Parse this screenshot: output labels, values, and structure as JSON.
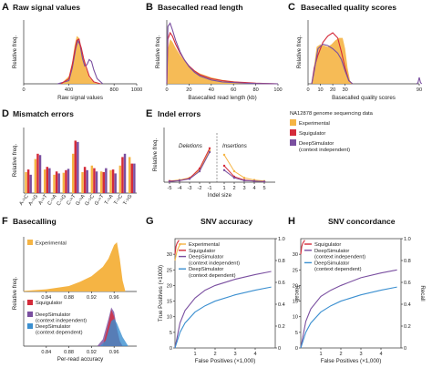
{
  "colors": {
    "experimental": "#f5b444",
    "squigulator": "#d42b3a",
    "deepsim_ci": "#7a4fa0",
    "deepsim_cd": "#3b8fd0",
    "right_axis": "#444444"
  },
  "chart_data": [
    {
      "id": "A",
      "type": "line",
      "letter": "A",
      "title": "Raw signal values",
      "xlabel": "Raw signal values",
      "ylabel": "Relative freq.",
      "xlim": [
        0,
        1000
      ],
      "ylim": [
        0,
        1
      ],
      "xticks": [
        0,
        400,
        800,
        1000
      ],
      "xtick_labels": [
        "0",
        "400",
        "800",
        "1000"
      ],
      "series": [
        {
          "key": "deepsim_ci",
          "x": [
            300,
            400,
            430,
            460,
            480,
            500,
            520,
            540,
            560,
            580,
            600,
            620,
            650,
            700
          ],
          "y": [
            0,
            0.05,
            0.25,
            0.55,
            0.68,
            0.6,
            0.4,
            0.28,
            0.3,
            0.38,
            0.35,
            0.22,
            0.08,
            0
          ]
        },
        {
          "key": "squigulator",
          "x": [
            330,
            400,
            430,
            450,
            470,
            490,
            500,
            510,
            530,
            550,
            580,
            620,
            680
          ],
          "y": [
            0,
            0.08,
            0.3,
            0.5,
            0.68,
            0.7,
            0.62,
            0.56,
            0.4,
            0.28,
            0.12,
            0.03,
            0
          ]
        }
      ],
      "area": {
        "key": "experimental",
        "x": [
          330,
          400,
          430,
          450,
          470,
          490,
          500,
          510,
          530,
          550,
          580,
          620,
          680
        ],
        "y": [
          0,
          0.12,
          0.35,
          0.6,
          0.75,
          0.72,
          0.62,
          0.55,
          0.4,
          0.25,
          0.1,
          0.02,
          0
        ]
      }
    },
    {
      "id": "B",
      "type": "line",
      "letter": "B",
      "title": "Basecalled read length",
      "xlabel": "Basecalled read length (kb)",
      "ylabel": "Relative freq.",
      "xlim": [
        0,
        100
      ],
      "ylim": [
        0,
        1
      ],
      "xticks": [
        0,
        20,
        40,
        60,
        80,
        100
      ],
      "xtick_labels": [
        "0",
        "20",
        "40",
        "60",
        "80",
        "100"
      ],
      "series": [
        {
          "key": "squigulator",
          "x": [
            0,
            1,
            3,
            5,
            8,
            12,
            16,
            20,
            25,
            30,
            40,
            50,
            60,
            70,
            80,
            90,
            100
          ],
          "y": [
            0,
            0.7,
            0.8,
            0.75,
            0.62,
            0.48,
            0.37,
            0.28,
            0.2,
            0.14,
            0.08,
            0.05,
            0.03,
            0.02,
            0.01,
            0.005,
            0
          ]
        },
        {
          "key": "deepsim_ci",
          "x": [
            0,
            1,
            3,
            5,
            8,
            12,
            16,
            20,
            25,
            30,
            40,
            50,
            60,
            70,
            80,
            90,
            100
          ],
          "y": [
            0,
            0.9,
            0.95,
            0.85,
            0.68,
            0.5,
            0.37,
            0.27,
            0.18,
            0.12,
            0.06,
            0.03,
            0.02,
            0.01,
            0.005,
            0.002,
            0
          ]
        }
      ],
      "area": {
        "key": "experimental",
        "x": [
          0,
          1,
          3,
          5,
          8,
          12,
          16,
          20,
          25,
          30,
          40,
          50,
          60,
          70,
          80,
          90,
          100
        ],
        "y": [
          0,
          0.55,
          0.7,
          0.66,
          0.56,
          0.45,
          0.36,
          0.28,
          0.21,
          0.16,
          0.1,
          0.06,
          0.04,
          0.02,
          0.01,
          0.005,
          0
        ]
      }
    },
    {
      "id": "C",
      "type": "line",
      "letter": "C",
      "title": "Basecalled quality scores",
      "xlabel": "Basecalled quality scores",
      "ylabel": "Relative freq.",
      "xlim": [
        0,
        90
      ],
      "ylim": [
        0,
        1
      ],
      "xticks": [
        0,
        10,
        20,
        30,
        90
      ],
      "xtick_labels": [
        "0",
        "10",
        "20",
        "30",
        "90"
      ],
      "series": [
        {
          "key": "squigulator",
          "x": [
            3,
            5,
            8,
            12,
            16,
            20,
            24,
            27,
            30,
            33,
            36
          ],
          "y": [
            0,
            0.25,
            0.45,
            0.65,
            0.75,
            0.8,
            0.72,
            0.5,
            0.25,
            0.05,
            0
          ]
        },
        {
          "key": "deepsim_ci",
          "x": [
            3,
            5,
            8,
            12,
            16,
            20,
            24,
            27,
            30,
            33,
            36
          ],
          "y": [
            0,
            0.2,
            0.55,
            0.62,
            0.6,
            0.55,
            0.48,
            0.38,
            0.2,
            0.05,
            0
          ]
        },
        {
          "key": "deepsim_ci",
          "x": [
            88,
            89,
            90,
            91,
            92
          ],
          "y": [
            0,
            0.02,
            0.1,
            0.02,
            0
          ]
        }
      ],
      "area": {
        "key": "experimental",
        "x": [
          3,
          5,
          7,
          10,
          13,
          16,
          19,
          22,
          25,
          28,
          30,
          32,
          34,
          36
        ],
        "y": [
          0,
          0.3,
          0.58,
          0.62,
          0.6,
          0.58,
          0.62,
          0.68,
          0.72,
          0.72,
          0.55,
          0.25,
          0.05,
          0
        ]
      }
    },
    {
      "id": "D",
      "type": "bar",
      "letter": "D",
      "title": "Mismatch errors",
      "ylabel": "Relative freq.",
      "ylim": [
        0,
        1
      ],
      "categories": [
        "A->C",
        "A->G",
        "A->T",
        "C->A",
        "C->G",
        "C->T",
        "G->A",
        "G->C",
        "G->T",
        "T->A",
        "T->C",
        "T->G"
      ],
      "series": [
        {
          "key": "experimental",
          "values": [
            0.32,
            0.52,
            0.36,
            0.28,
            0.31,
            0.6,
            0.32,
            0.42,
            0.33,
            0.35,
            0.42,
            0.55
          ]
        },
        {
          "key": "squigulator",
          "values": [
            0.36,
            0.6,
            0.4,
            0.33,
            0.35,
            0.8,
            0.4,
            0.38,
            0.32,
            0.36,
            0.55,
            0.45
          ]
        },
        {
          "key": "deepsim_ci",
          "values": [
            0.28,
            0.58,
            0.38,
            0.3,
            0.37,
            0.78,
            0.35,
            0.33,
            0.38,
            0.3,
            0.6,
            0.45
          ]
        }
      ]
    },
    {
      "id": "E",
      "type": "line",
      "letter": "E",
      "title": "Indel errors",
      "xlabel": "Indel size",
      "ylabel": "Relative freq.",
      "annotations": [
        "Deletions",
        "Insertions"
      ],
      "xticks": [
        -5,
        -4,
        -3,
        -2,
        -1,
        1,
        2,
        3,
        4,
        5
      ],
      "xtick_labels": [
        "-5",
        "-4",
        "-3",
        "-2",
        "-1",
        "1",
        "2",
        "3",
        "4",
        "5"
      ],
      "ylim": [
        0,
        1
      ],
      "series": [
        {
          "key": "experimental",
          "x": [
            -5,
            -4,
            -3,
            -2,
            -1,
            1,
            2,
            3,
            4,
            5
          ],
          "y": [
            0.02,
            0.04,
            0.08,
            0.22,
            0.58,
            0.5,
            0.2,
            0.08,
            0.04,
            0.02
          ]
        },
        {
          "key": "squigulator",
          "x": [
            -5,
            -4,
            -3,
            -2,
            -1,
            1,
            2,
            3,
            4,
            5
          ],
          "y": [
            0.02,
            0.03,
            0.07,
            0.25,
            0.62,
            0.3,
            0.1,
            0.04,
            0.02,
            0.01
          ]
        },
        {
          "key": "deepsim_ci",
          "x": [
            -5,
            -4,
            -3,
            -2,
            -1,
            1,
            2,
            3,
            4,
            5
          ],
          "y": [
            0.01,
            0.03,
            0.06,
            0.2,
            0.55,
            0.22,
            0.08,
            0.03,
            0.02,
            0.01
          ]
        }
      ]
    },
    {
      "id": "F1",
      "type": "area",
      "letter": "F",
      "title": "Basecalling",
      "ylabel": "Relative freq.",
      "xlim": [
        0.8,
        1.0
      ],
      "ylim": [
        0,
        1
      ],
      "xticks": [
        0.84,
        0.88,
        0.92,
        0.96
      ],
      "xtick_labels": [
        "0.84",
        "0.88",
        "0.92",
        "0.96"
      ],
      "area": {
        "key": "experimental",
        "x": [
          0.8,
          0.84,
          0.88,
          0.9,
          0.92,
          0.94,
          0.95,
          0.96,
          0.965,
          0.97,
          0.975,
          0.98
        ],
        "y": [
          0.01,
          0.04,
          0.1,
          0.18,
          0.28,
          0.45,
          0.6,
          0.85,
          0.9,
          0.6,
          0.2,
          0
        ]
      }
    },
    {
      "id": "F2",
      "type": "area",
      "xlabel": "Per-read accuracy",
      "xlim": [
        0.8,
        1.0
      ],
      "ylim": [
        0,
        1
      ],
      "xticks": [
        0.84,
        0.88,
        0.92,
        0.96
      ],
      "xtick_labels": [
        "0.84",
        "0.88",
        "0.92",
        "0.96"
      ],
      "areas": [
        {
          "key": "deepsim_ci",
          "x": [
            0.93,
            0.94,
            0.95,
            0.955,
            0.96,
            0.965,
            0.97,
            0.975
          ],
          "y": [
            0,
            0.15,
            0.6,
            0.85,
            0.75,
            0.4,
            0.12,
            0
          ]
        },
        {
          "key": "squigulator",
          "x": [
            0.94,
            0.95,
            0.955,
            0.96,
            0.965,
            0.97,
            0.975
          ],
          "y": [
            0,
            0.5,
            0.8,
            0.65,
            0.35,
            0.1,
            0
          ]
        },
        {
          "key": "deepsim_cd",
          "x": [
            0.935,
            0.945,
            0.955,
            0.96,
            0.965,
            0.975,
            0.985
          ],
          "y": [
            0,
            0.12,
            0.55,
            0.6,
            0.5,
            0.2,
            0
          ]
        }
      ]
    },
    {
      "id": "G",
      "type": "line",
      "letter": "G",
      "title": "SNV accuracy",
      "xlabel": "False Positives (×1,000)",
      "ylabel": "True Positives (×1000)",
      "y2label": "Recall",
      "xlim": [
        0,
        5
      ],
      "ylim": [
        0,
        35
      ],
      "y2lim": [
        0,
        1
      ],
      "xticks": [
        1,
        2,
        3,
        4
      ],
      "xtick_labels": [
        "1",
        "2",
        "3",
        "4"
      ],
      "yticks": [
        0,
        5,
        10,
        15,
        20,
        25,
        30
      ],
      "y2ticks": [
        0,
        0.2,
        0.4,
        0.6,
        0.8,
        1.0
      ],
      "y2tick_labels": [
        "0",
        "0.2",
        "0.4",
        "0.6",
        "0.8",
        "1.0"
      ],
      "series": [
        {
          "key": "experimental",
          "x": [
            0,
            0.1,
            0.2,
            0.3
          ],
          "y": [
            28,
            31,
            32.5,
            33.5
          ]
        },
        {
          "key": "squigulator",
          "x": [
            0,
            0.05,
            0.1,
            0.2
          ],
          "y": [
            30,
            32.5,
            33.5,
            34.5
          ]
        },
        {
          "key": "deepsim_ci",
          "x": [
            0,
            0.25,
            0.5,
            1.0,
            1.5,
            2.0,
            3.0,
            4.0,
            4.8
          ],
          "y": [
            0,
            8,
            12,
            16,
            18.5,
            20,
            22,
            23.5,
            24.5
          ]
        },
        {
          "key": "deepsim_cd",
          "x": [
            0,
            0.25,
            0.5,
            1.0,
            1.5,
            2.0,
            3.0,
            4.0,
            4.8
          ],
          "y": [
            0,
            5,
            8,
            11.5,
            13.5,
            15,
            17,
            18.5,
            19.5
          ]
        }
      ]
    },
    {
      "id": "H",
      "type": "line",
      "letter": "H",
      "title": "SNV concordance",
      "xlabel": "False Positives (×1,000)",
      "y2label": "Recall",
      "xlim": [
        0,
        5
      ],
      "ylim": [
        0,
        35
      ],
      "y2lim": [
        0,
        1
      ],
      "xticks": [
        1,
        2,
        3,
        4
      ],
      "xtick_labels": [
        "1",
        "2",
        "3",
        "4"
      ],
      "yticks": [
        0,
        5,
        10,
        15,
        20,
        25,
        30
      ],
      "y2ticks": [
        0,
        0.2,
        0.4,
        0.6,
        0.8,
        1.0
      ],
      "y2tick_labels": [
        "0",
        "0.2",
        "0.4",
        "0.6",
        "0.8",
        "1.0"
      ],
      "series": [
        {
          "key": "squigulator",
          "x": [
            0,
            0.05,
            0.1,
            0.2
          ],
          "y": [
            30,
            32.5,
            33.5,
            34.5
          ]
        },
        {
          "key": "deepsim_ci",
          "x": [
            0,
            0.25,
            0.5,
            1.0,
            1.5,
            2.0,
            3.0,
            4.0,
            4.8
          ],
          "y": [
            0,
            8.5,
            12.5,
            16.5,
            18.5,
            20,
            22.5,
            24,
            25
          ]
        },
        {
          "key": "deepsim_cd",
          "x": [
            0,
            0.25,
            0.5,
            1.0,
            1.5,
            2.0,
            3.0,
            4.0,
            4.8
          ],
          "y": [
            0,
            5,
            8,
            11.5,
            13.5,
            15,
            17,
            18.5,
            19.5
          ]
        }
      ]
    }
  ],
  "legend_main": {
    "title": "NA12878 genome sequencing data",
    "items": [
      {
        "key": "experimental",
        "label": "Experimental"
      },
      {
        "key": "squigulator",
        "label": "Squigulator"
      },
      {
        "key": "deepsim_ci",
        "label": "DeepSimulator",
        "sub": "(context independent)"
      }
    ]
  },
  "legend_f1": {
    "label": "Experimental"
  },
  "legend_f2": [
    {
      "key": "squigulator",
      "label": "Squigulator"
    },
    {
      "key": "deepsim_ci",
      "label": "DeepSimulator",
      "sub": "(context independent)"
    },
    {
      "key": "deepsim_cd",
      "label": "DeepSimulator",
      "sub": "(context dependent)"
    }
  ],
  "legend_g": [
    {
      "key": "experimental",
      "label": "Experimental"
    },
    {
      "key": "squigulator",
      "label": "Squigulator"
    },
    {
      "key": "deepsim_ci",
      "label": "DeepSimulator",
      "sub": "(context independent)"
    },
    {
      "key": "deepsim_cd",
      "label": "DeepSimulator",
      "sub": "(context dependent)"
    }
  ],
  "legend_h": [
    {
      "key": "squigulator",
      "label": "Squigulator"
    },
    {
      "key": "deepsim_ci",
      "label": "DeepSimulator",
      "sub": "(context independent)"
    },
    {
      "key": "deepsim_cd",
      "label": "DeepSimulator",
      "sub": "(context dependent)"
    }
  ]
}
